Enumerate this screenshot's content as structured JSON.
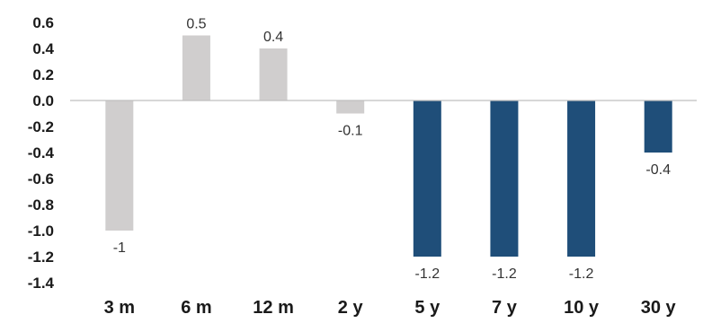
{
  "chart_data": {
    "type": "bar",
    "categories": [
      "3 m",
      "6 m",
      "12 m",
      "2 y",
      "5 y",
      "7 y",
      "10 y",
      "30 y"
    ],
    "values": [
      -1.0,
      0.5,
      0.4,
      -0.1,
      -1.2,
      -1.2,
      -1.2,
      -0.4
    ],
    "data_labels": [
      "-1",
      "0.5",
      "0.4",
      "-0.1",
      "-1.2",
      "-1.2",
      "-1.2",
      "-0.4"
    ],
    "bar_colors": [
      "#d0cece",
      "#d0cece",
      "#d0cece",
      "#d0cece",
      "#1f4e79",
      "#1f4e79",
      "#1f4e79",
      "#1f4e79"
    ],
    "yticks": [
      "0.6",
      "0.4",
      "0.2",
      "0.0",
      "-0.2",
      "-0.4",
      "-0.6",
      "-0.8",
      "-1.0",
      "-1.2",
      "-1.4"
    ],
    "ylim": [
      -1.4,
      0.6
    ],
    "title": "",
    "xlabel": "",
    "ylabel": "",
    "grid": false,
    "legend": "none"
  }
}
